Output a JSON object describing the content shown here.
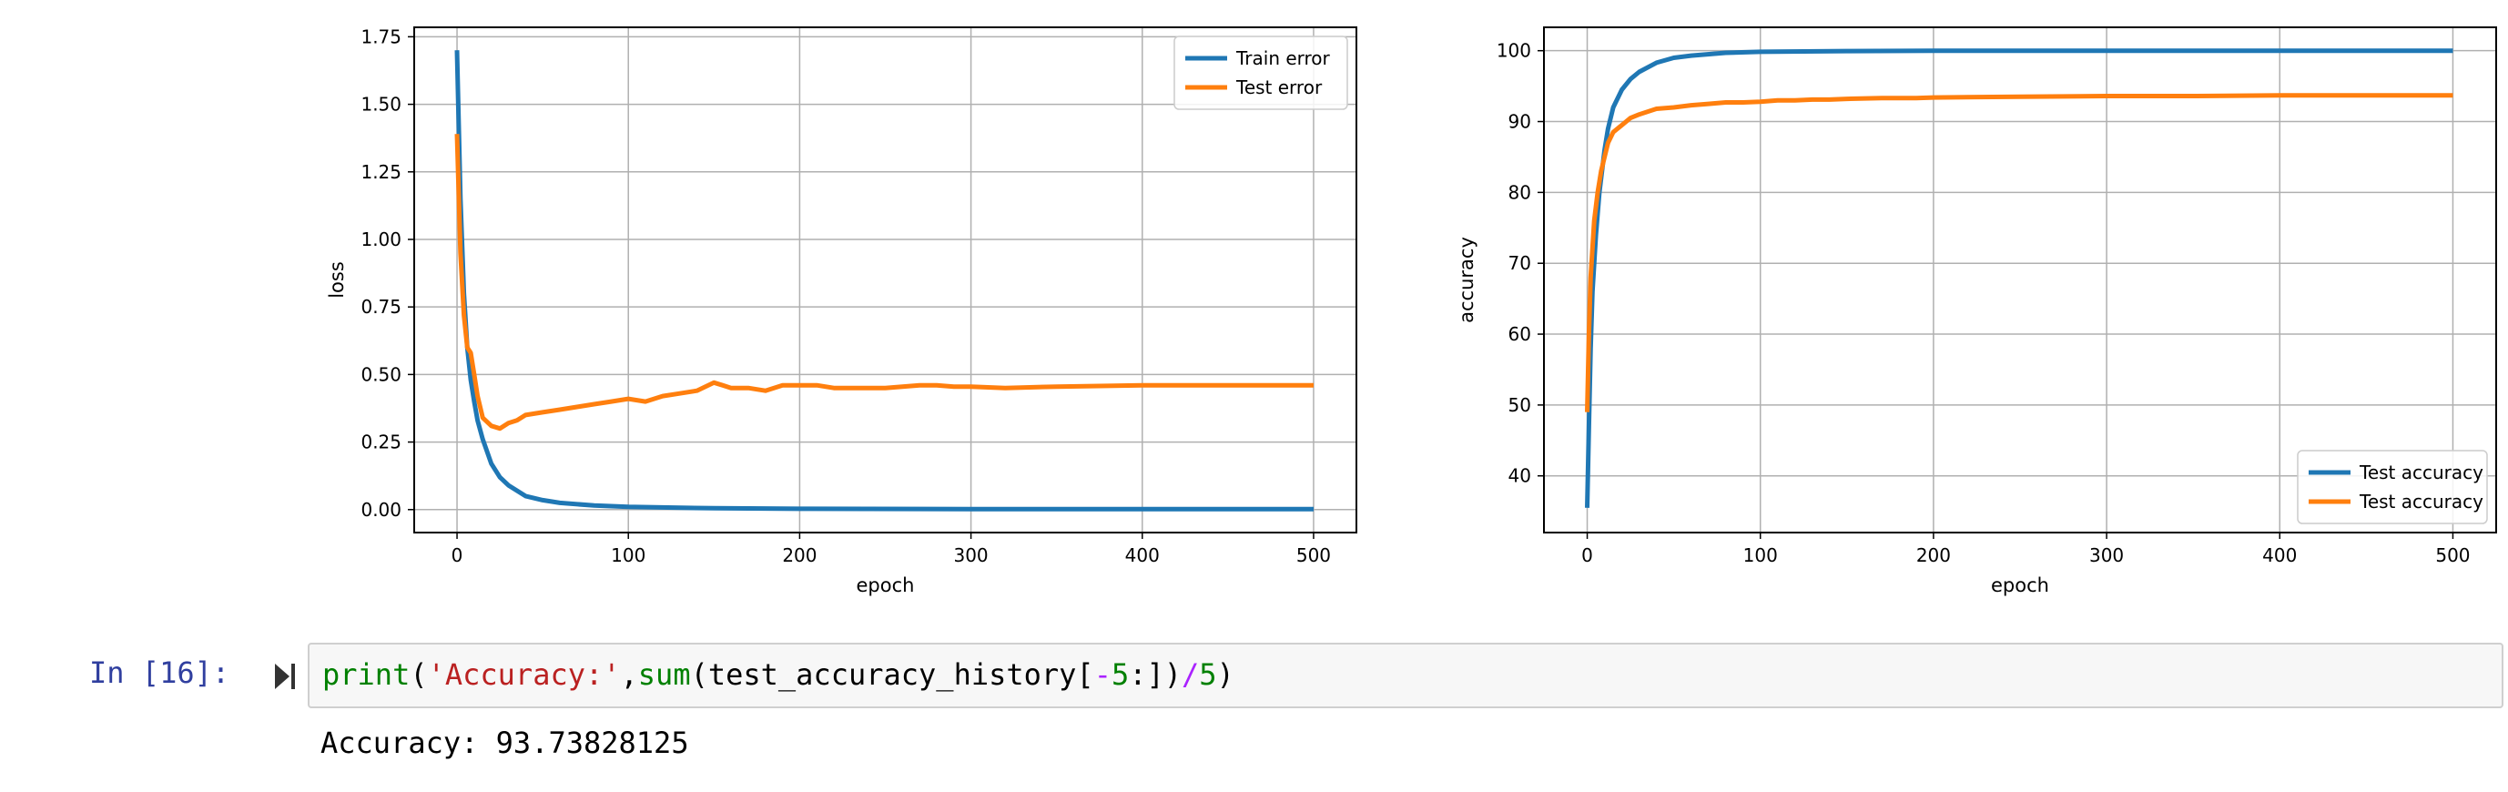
{
  "notebook": {
    "prompt": "In [16]:",
    "code": {
      "fn_print": "print",
      "paren_open": "(",
      "string": "'Accuracy:'",
      "comma": ",",
      "fn_sum": "sum",
      "paren_open2": "(",
      "var": "test_accuracy_history",
      "bracket_open": "[",
      "minus": "-",
      "num5a": "5",
      "slice_end": ":])",
      "div": "/",
      "num5b": "5",
      "paren_close": ")"
    },
    "output": "Accuracy: 93.73828125"
  },
  "colors": {
    "blue": "#1f77b4",
    "orange": "#ff7f0e",
    "grid": "#b0b0b0"
  },
  "chart_data": [
    {
      "type": "line",
      "xlabel": "epoch",
      "ylabel": "loss",
      "xlim": [
        -25,
        525
      ],
      "ylim": [
        -0.085,
        1.785
      ],
      "xticks": [
        0,
        100,
        200,
        300,
        400,
        500
      ],
      "yticks": [
        0.0,
        0.25,
        0.5,
        0.75,
        1.0,
        1.25,
        1.5,
        1.75
      ],
      "ytick_labels": [
        "0.00",
        "0.25",
        "0.50",
        "0.75",
        "1.00",
        "1.25",
        "1.50",
        "1.75"
      ],
      "grid": true,
      "legend": "top-right",
      "series": [
        {
          "name": "Train error",
          "color": "blue",
          "x": [
            0,
            2,
            4,
            6,
            8,
            10,
            12,
            15,
            20,
            25,
            30,
            40,
            50,
            60,
            80,
            100,
            150,
            200,
            300,
            400,
            500
          ],
          "y": [
            1.7,
            1.15,
            0.8,
            0.6,
            0.48,
            0.4,
            0.33,
            0.26,
            0.17,
            0.12,
            0.09,
            0.05,
            0.035,
            0.025,
            0.015,
            0.01,
            0.005,
            0.003,
            0.002,
            0.002,
            0.002
          ]
        },
        {
          "name": "Test error",
          "color": "orange",
          "x": [
            0,
            2,
            4,
            6,
            8,
            10,
            12,
            15,
            20,
            25,
            30,
            35,
            40,
            50,
            60,
            70,
            80,
            90,
            100,
            110,
            120,
            130,
            140,
            150,
            155,
            160,
            170,
            180,
            190,
            200,
            210,
            220,
            230,
            240,
            250,
            260,
            270,
            280,
            290,
            300,
            320,
            350,
            400,
            450,
            500
          ],
          "y": [
            1.39,
            0.95,
            0.72,
            0.6,
            0.58,
            0.5,
            0.42,
            0.34,
            0.31,
            0.3,
            0.32,
            0.33,
            0.35,
            0.36,
            0.37,
            0.38,
            0.39,
            0.4,
            0.41,
            0.4,
            0.42,
            0.43,
            0.44,
            0.47,
            0.46,
            0.45,
            0.45,
            0.44,
            0.46,
            0.46,
            0.46,
            0.45,
            0.45,
            0.45,
            0.45,
            0.455,
            0.46,
            0.46,
            0.455,
            0.455,
            0.45,
            0.455,
            0.46,
            0.46,
            0.46
          ]
        }
      ]
    },
    {
      "type": "line",
      "xlabel": "epoch",
      "ylabel": "accuracy",
      "xlim": [
        -25,
        525
      ],
      "ylim": [
        32,
        103.3
      ],
      "xticks": [
        0,
        100,
        200,
        300,
        400,
        500
      ],
      "yticks": [
        40,
        50,
        60,
        70,
        80,
        90,
        100
      ],
      "ytick_labels": [
        "40",
        "50",
        "60",
        "70",
        "80",
        "90",
        "100"
      ],
      "grid": true,
      "legend": "bottom-right",
      "series": [
        {
          "name": "Test accuracy",
          "color": "blue",
          "x": [
            0,
            1,
            2,
            3,
            5,
            7,
            10,
            12,
            15,
            20,
            25,
            30,
            40,
            50,
            60,
            80,
            100,
            150,
            200,
            300,
            400,
            500
          ],
          "y": [
            35.5,
            47,
            58,
            66,
            74,
            80,
            86,
            89,
            92,
            94.5,
            96,
            97,
            98.3,
            99,
            99.3,
            99.7,
            99.85,
            99.95,
            100,
            100,
            100,
            100
          ]
        },
        {
          "name": "Test accuracy",
          "color": "orange",
          "x": [
            0,
            1,
            2,
            4,
            6,
            8,
            10,
            12,
            15,
            20,
            25,
            30,
            40,
            50,
            60,
            70,
            80,
            90,
            100,
            110,
            120,
            130,
            140,
            150,
            170,
            190,
            200,
            250,
            300,
            350,
            400,
            450,
            500
          ],
          "y": [
            49,
            60,
            68,
            76,
            80,
            83,
            85,
            87,
            88.5,
            89.5,
            90.5,
            91,
            91.8,
            92,
            92.3,
            92.5,
            92.7,
            92.7,
            92.8,
            93,
            93,
            93.1,
            93.1,
            93.2,
            93.3,
            93.3,
            93.4,
            93.5,
            93.6,
            93.6,
            93.7,
            93.7,
            93.7
          ]
        }
      ]
    }
  ]
}
